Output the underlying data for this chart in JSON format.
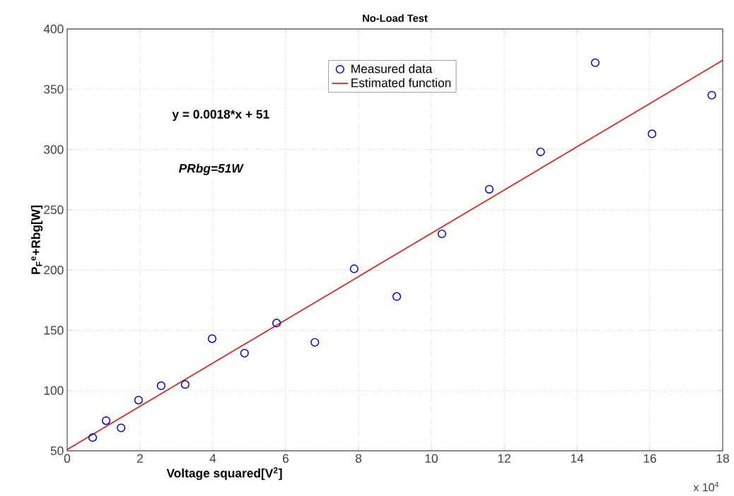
{
  "chart_data": {
    "type": "scatter",
    "title": "No-Load Test",
    "xlabel": "Voltage squared[V$^{2}$]",
    "ylabel": "P$_{F}$$^{e}$+Rbg[W]",
    "annotations": [
      "y = 0.0018*x + 51",
      "PRbg=51W",
      "x 10$^{4}$"
    ],
    "series": [
      {
        "name": "Measured data",
        "type": "scatter",
        "color": "#0000c0",
        "marker": "circle",
        "x": [
          0.7,
          1.07,
          1.48,
          1.96,
          2.58,
          3.24,
          3.98,
          4.87,
          5.75,
          6.8,
          7.88,
          9.05,
          10.29,
          11.59,
          13.0,
          14.5,
          16.06,
          17.7
        ],
        "values": [
          61,
          75,
          69,
          92,
          104,
          105,
          143,
          131,
          156,
          140,
          201,
          178,
          230,
          267,
          298,
          372,
          313,
          345
        ]
      },
      {
        "name": "Estimated function",
        "type": "line",
        "color": "#e02020",
        "x": [
          0,
          18
        ],
        "values": [
          51,
          374
        ]
      }
    ],
    "xlim": [
      0,
      18
    ],
    "ylim": [
      50,
      400
    ],
    "xticks": [
      0,
      2,
      4,
      6,
      8,
      10,
      12,
      14,
      16,
      18
    ],
    "yticks": [
      50,
      100,
      150,
      200,
      250,
      300,
      350,
      400
    ],
    "grid": true,
    "legend": "top"
  }
}
